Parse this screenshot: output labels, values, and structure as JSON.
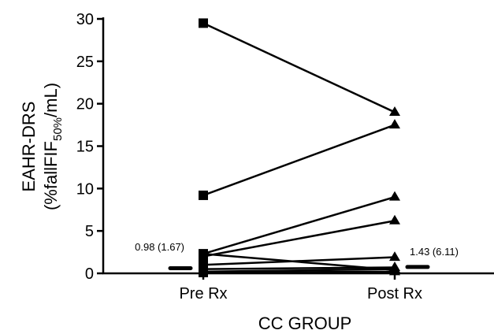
{
  "chart_data": {
    "type": "line",
    "title": "",
    "xlabel": "CC GROUP",
    "ylabel_line1": "EAHR-DRS",
    "ylabel_line2_prefix": "(%fallFIF",
    "ylabel_line2_subscript": "50%",
    "ylabel_line2_suffix": "/mL)",
    "categories": [
      "Pre Rx",
      "Post Rx"
    ],
    "ylim": [
      0,
      30
    ],
    "yticks": [
      "0",
      "5",
      "10",
      "15",
      "20",
      "25",
      "30"
    ],
    "grid": false,
    "marker_pre": "square",
    "marker_post": "triangle",
    "series": [
      {
        "values": [
          29.5,
          19.0
        ]
      },
      {
        "values": [
          9.2,
          17.5
        ]
      },
      {
        "values": [
          2.3,
          9.0
        ]
      },
      {
        "values": [
          2.0,
          6.2
        ]
      },
      {
        "values": [
          1.0,
          1.9
        ]
      },
      {
        "values": [
          2.3,
          0.4
        ]
      },
      {
        "values": [
          0.5,
          0.7
        ]
      },
      {
        "values": [
          0.2,
          0.5
        ]
      },
      {
        "values": [
          0.1,
          0.2
        ]
      }
    ],
    "medians": [
      {
        "category": "Pre Rx",
        "value": 0.6,
        "label": "0.98 (1.67)"
      },
      {
        "category": "Post Rx",
        "value": 0.75,
        "label": "1.43 (6.11)"
      }
    ],
    "colors": {
      "line": "#000000",
      "marker": "#000000"
    }
  }
}
